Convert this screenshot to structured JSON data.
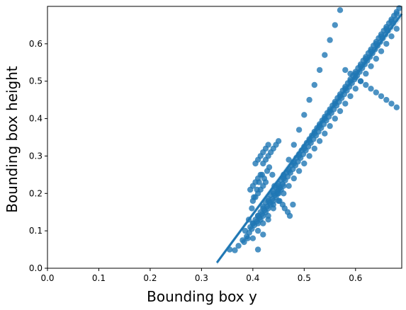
{
  "chart_data": {
    "type": "scatter",
    "title": "",
    "xlabel": "Bounding box y",
    "ylabel": "Bounding box height",
    "xlim": [
      0.0,
      0.69
    ],
    "ylim": [
      0.0,
      0.7
    ],
    "xticks": [
      "0.0",
      "0.1",
      "0.2",
      "0.3",
      "0.4",
      "0.5",
      "0.6"
    ],
    "yticks": [
      "0.0",
      "0.1",
      "0.2",
      "0.3",
      "0.4",
      "0.5",
      "0.6"
    ],
    "grid": false,
    "legend": false,
    "point_color": "#1f77b4",
    "regression_line": {
      "x": [
        0.33,
        0.69
      ],
      "y": [
        0.015,
        0.68
      ],
      "ci_band": true
    },
    "series": [
      {
        "x": [
          0.355,
          0.365,
          0.372,
          0.38,
          0.39,
          0.385,
          0.395,
          0.4,
          0.405,
          0.41,
          0.415,
          0.42,
          0.425,
          0.43,
          0.435,
          0.44,
          0.445,
          0.45,
          0.455,
          0.46,
          0.465,
          0.47,
          0.475,
          0.48,
          0.485,
          0.49,
          0.495,
          0.5,
          0.505,
          0.51,
          0.515,
          0.52,
          0.525,
          0.53,
          0.535,
          0.54,
          0.545,
          0.55,
          0.555,
          0.56,
          0.565,
          0.57,
          0.575,
          0.58,
          0.585,
          0.59,
          0.595,
          0.6,
          0.605,
          0.61,
          0.615,
          0.62,
          0.625,
          0.63,
          0.635,
          0.64,
          0.645,
          0.65,
          0.655,
          0.66,
          0.665,
          0.67,
          0.675,
          0.68,
          0.685,
          0.392,
          0.398,
          0.402,
          0.408,
          0.412,
          0.418,
          0.422,
          0.428,
          0.432,
          0.438,
          0.442,
          0.448,
          0.452,
          0.458,
          0.462,
          0.468,
          0.472,
          0.478,
          0.41,
          0.415,
          0.42,
          0.425,
          0.43,
          0.435,
          0.44,
          0.445,
          0.45,
          0.455,
          0.46,
          0.42,
          0.425,
          0.43,
          0.435,
          0.44,
          0.445,
          0.45,
          0.405,
          0.41,
          0.415,
          0.42,
          0.425,
          0.43,
          0.395,
          0.4,
          0.405,
          0.41,
          0.415,
          0.4,
          0.405,
          0.41,
          0.415,
          0.42,
          0.425,
          0.383,
          0.388,
          0.393,
          0.398,
          0.403,
          0.408,
          0.413,
          0.418,
          0.423,
          0.428,
          0.433,
          0.438,
          0.443,
          0.448,
          0.453,
          0.458,
          0.463,
          0.468,
          0.473,
          0.478,
          0.483,
          0.488,
          0.493,
          0.498,
          0.503,
          0.508,
          0.513,
          0.518,
          0.523,
          0.528,
          0.533,
          0.538,
          0.543,
          0.548,
          0.553,
          0.558,
          0.563,
          0.568,
          0.573,
          0.578,
          0.583,
          0.588,
          0.593,
          0.598,
          0.603,
          0.608,
          0.613,
          0.618,
          0.623,
          0.628,
          0.633,
          0.638,
          0.643,
          0.648,
          0.653,
          0.658,
          0.663,
          0.668,
          0.673,
          0.678,
          0.41,
          0.42,
          0.43,
          0.44,
          0.45,
          0.46,
          0.47,
          0.48,
          0.49,
          0.5,
          0.51,
          0.52,
          0.53,
          0.54,
          0.55,
          0.56,
          0.57,
          0.58,
          0.59,
          0.6,
          0.61,
          0.62,
          0.63,
          0.64,
          0.65,
          0.66,
          0.67,
          0.68,
          0.4,
          0.41,
          0.42,
          0.43,
          0.44,
          0.45,
          0.46,
          0.47,
          0.48,
          0.49,
          0.5,
          0.51,
          0.52,
          0.53,
          0.54,
          0.55,
          0.56,
          0.57,
          0.58,
          0.59,
          0.6,
          0.61,
          0.62,
          0.63,
          0.64,
          0.65,
          0.66,
          0.67,
          0.68,
          0.4,
          0.41,
          0.42,
          0.43,
          0.44,
          0.45,
          0.46,
          0.47,
          0.48,
          0.49,
          0.5,
          0.51,
          0.52,
          0.53,
          0.54,
          0.55,
          0.56,
          0.57,
          0.58,
          0.59,
          0.6,
          0.61,
          0.62,
          0.63,
          0.64,
          0.65,
          0.66,
          0.67,
          0.68
        ],
        "y": [
          0.05,
          0.048,
          0.06,
          0.075,
          0.08,
          0.1,
          0.11,
          0.12,
          0.13,
          0.14,
          0.15,
          0.165,
          0.175,
          0.185,
          0.195,
          0.205,
          0.215,
          0.225,
          0.235,
          0.245,
          0.255,
          0.265,
          0.275,
          0.285,
          0.295,
          0.305,
          0.315,
          0.325,
          0.335,
          0.345,
          0.355,
          0.365,
          0.375,
          0.385,
          0.395,
          0.405,
          0.415,
          0.425,
          0.435,
          0.445,
          0.455,
          0.465,
          0.475,
          0.485,
          0.495,
          0.505,
          0.515,
          0.525,
          0.535,
          0.545,
          0.555,
          0.565,
          0.575,
          0.585,
          0.595,
          0.605,
          0.615,
          0.625,
          0.635,
          0.645,
          0.655,
          0.665,
          0.675,
          0.685,
          0.695,
          0.13,
          0.16,
          0.19,
          0.21,
          0.23,
          0.25,
          0.24,
          0.26,
          0.27,
          0.25,
          0.22,
          0.2,
          0.18,
          0.17,
          0.16,
          0.15,
          0.14,
          0.17,
          0.12,
          0.13,
          0.14,
          0.15,
          0.16,
          0.17,
          0.18,
          0.19,
          0.2,
          0.21,
          0.22,
          0.28,
          0.29,
          0.3,
          0.31,
          0.32,
          0.33,
          0.34,
          0.28,
          0.29,
          0.3,
          0.31,
          0.32,
          0.33,
          0.21,
          0.22,
          0.23,
          0.24,
          0.25,
          0.18,
          0.19,
          0.2,
          0.21,
          0.22,
          0.23,
          0.07,
          0.085,
          0.095,
          0.105,
          0.115,
          0.125,
          0.135,
          0.145,
          0.155,
          0.165,
          0.175,
          0.185,
          0.195,
          0.205,
          0.215,
          0.225,
          0.235,
          0.245,
          0.255,
          0.265,
          0.275,
          0.285,
          0.295,
          0.305,
          0.315,
          0.325,
          0.335,
          0.345,
          0.355,
          0.365,
          0.375,
          0.385,
          0.395,
          0.405,
          0.415,
          0.425,
          0.435,
          0.445,
          0.455,
          0.465,
          0.475,
          0.485,
          0.495,
          0.505,
          0.515,
          0.525,
          0.535,
          0.545,
          0.555,
          0.565,
          0.575,
          0.585,
          0.595,
          0.605,
          0.615,
          0.625,
          0.635,
          0.645,
          0.655,
          0.665,
          0.05,
          0.09,
          0.13,
          0.17,
          0.21,
          0.25,
          0.29,
          0.33,
          0.37,
          0.41,
          0.45,
          0.49,
          0.53,
          0.57,
          0.61,
          0.65,
          0.69,
          0.53,
          0.52,
          0.51,
          0.5,
          0.49,
          0.48,
          0.47,
          0.46,
          0.45,
          0.44,
          0.43,
          0.08,
          0.1,
          0.12,
          0.14,
          0.16,
          0.18,
          0.2,
          0.22,
          0.24,
          0.26,
          0.28,
          0.3,
          0.32,
          0.34,
          0.36,
          0.38,
          0.4,
          0.42,
          0.44,
          0.46,
          0.48,
          0.5,
          0.52,
          0.54,
          0.56,
          0.58,
          0.6,
          0.62,
          0.64,
          0.12,
          0.14,
          0.16,
          0.18,
          0.2,
          0.22,
          0.24,
          0.26,
          0.28,
          0.3,
          0.32,
          0.34,
          0.36,
          0.38,
          0.4,
          0.42,
          0.44,
          0.46,
          0.48,
          0.5,
          0.52,
          0.54,
          0.56,
          0.58,
          0.6,
          0.62,
          0.64,
          0.66,
          0.68
        ]
      }
    ]
  }
}
